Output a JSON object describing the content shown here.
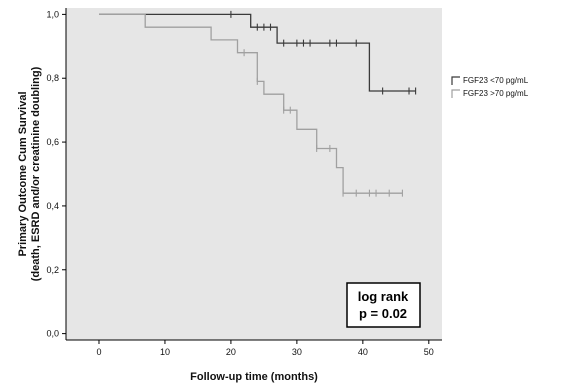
{
  "chart_data": {
    "type": "line",
    "subtype": "kaplan-meier",
    "title": "",
    "xlabel": "Follow-up time (months)",
    "ylabel_lines": [
      "Primary Outcome Cum Survival",
      "(death, ESRD and/or creatinine doubling)"
    ],
    "xlim": [
      -5,
      52
    ],
    "ylim": [
      -0.02,
      1.02
    ],
    "x_ticks": [
      0,
      10,
      20,
      30,
      40,
      50
    ],
    "x_tick_labels": [
      "0",
      "10",
      "20",
      "30",
      "40",
      "50"
    ],
    "y_ticks": [
      0.0,
      0.2,
      0.4,
      0.6,
      0.8,
      1.0
    ],
    "y_tick_labels": [
      "0,0",
      "0,2",
      "0,4",
      "0,6",
      "0,8",
      "1,0"
    ],
    "grid": false,
    "legend_position": "right",
    "background_color": "#e6e6e6",
    "series": [
      {
        "name": "FGF23 <70 pg/mL",
        "color": "#3a3a3a",
        "steps": [
          [
            0,
            1.0
          ],
          [
            23,
            0.96
          ],
          [
            27,
            0.91
          ],
          [
            41,
            0.76
          ],
          [
            48,
            0.76
          ]
        ],
        "censored": [
          [
            20,
            1.0
          ],
          [
            24,
            0.96
          ],
          [
            25,
            0.96
          ],
          [
            26,
            0.96
          ],
          [
            28,
            0.91
          ],
          [
            30,
            0.91
          ],
          [
            31,
            0.91
          ],
          [
            32,
            0.91
          ],
          [
            35,
            0.91
          ],
          [
            36,
            0.91
          ],
          [
            39,
            0.91
          ],
          [
            43,
            0.76
          ],
          [
            47,
            0.76
          ],
          [
            48,
            0.76
          ]
        ]
      },
      {
        "name": "FGF23 >70 pg/mL",
        "color": "#a0a0a0",
        "steps": [
          [
            0,
            1.0
          ],
          [
            7,
            0.96
          ],
          [
            17,
            0.92
          ],
          [
            21,
            0.88
          ],
          [
            24,
            0.79
          ],
          [
            25,
            0.75
          ],
          [
            28,
            0.7
          ],
          [
            30,
            0.64
          ],
          [
            33,
            0.58
          ],
          [
            36,
            0.52
          ],
          [
            37,
            0.44
          ],
          [
            46,
            0.44
          ]
        ],
        "censored": [
          [
            22,
            0.88
          ],
          [
            24,
            0.79
          ],
          [
            28,
            0.7
          ],
          [
            29,
            0.7
          ],
          [
            33,
            0.58
          ],
          [
            35,
            0.58
          ],
          [
            37,
            0.44
          ],
          [
            39,
            0.44
          ],
          [
            41,
            0.44
          ],
          [
            42,
            0.44
          ],
          [
            44,
            0.44
          ],
          [
            46,
            0.44
          ]
        ]
      }
    ],
    "annotation_lines": [
      "log rank",
      "p = 0.02"
    ]
  }
}
